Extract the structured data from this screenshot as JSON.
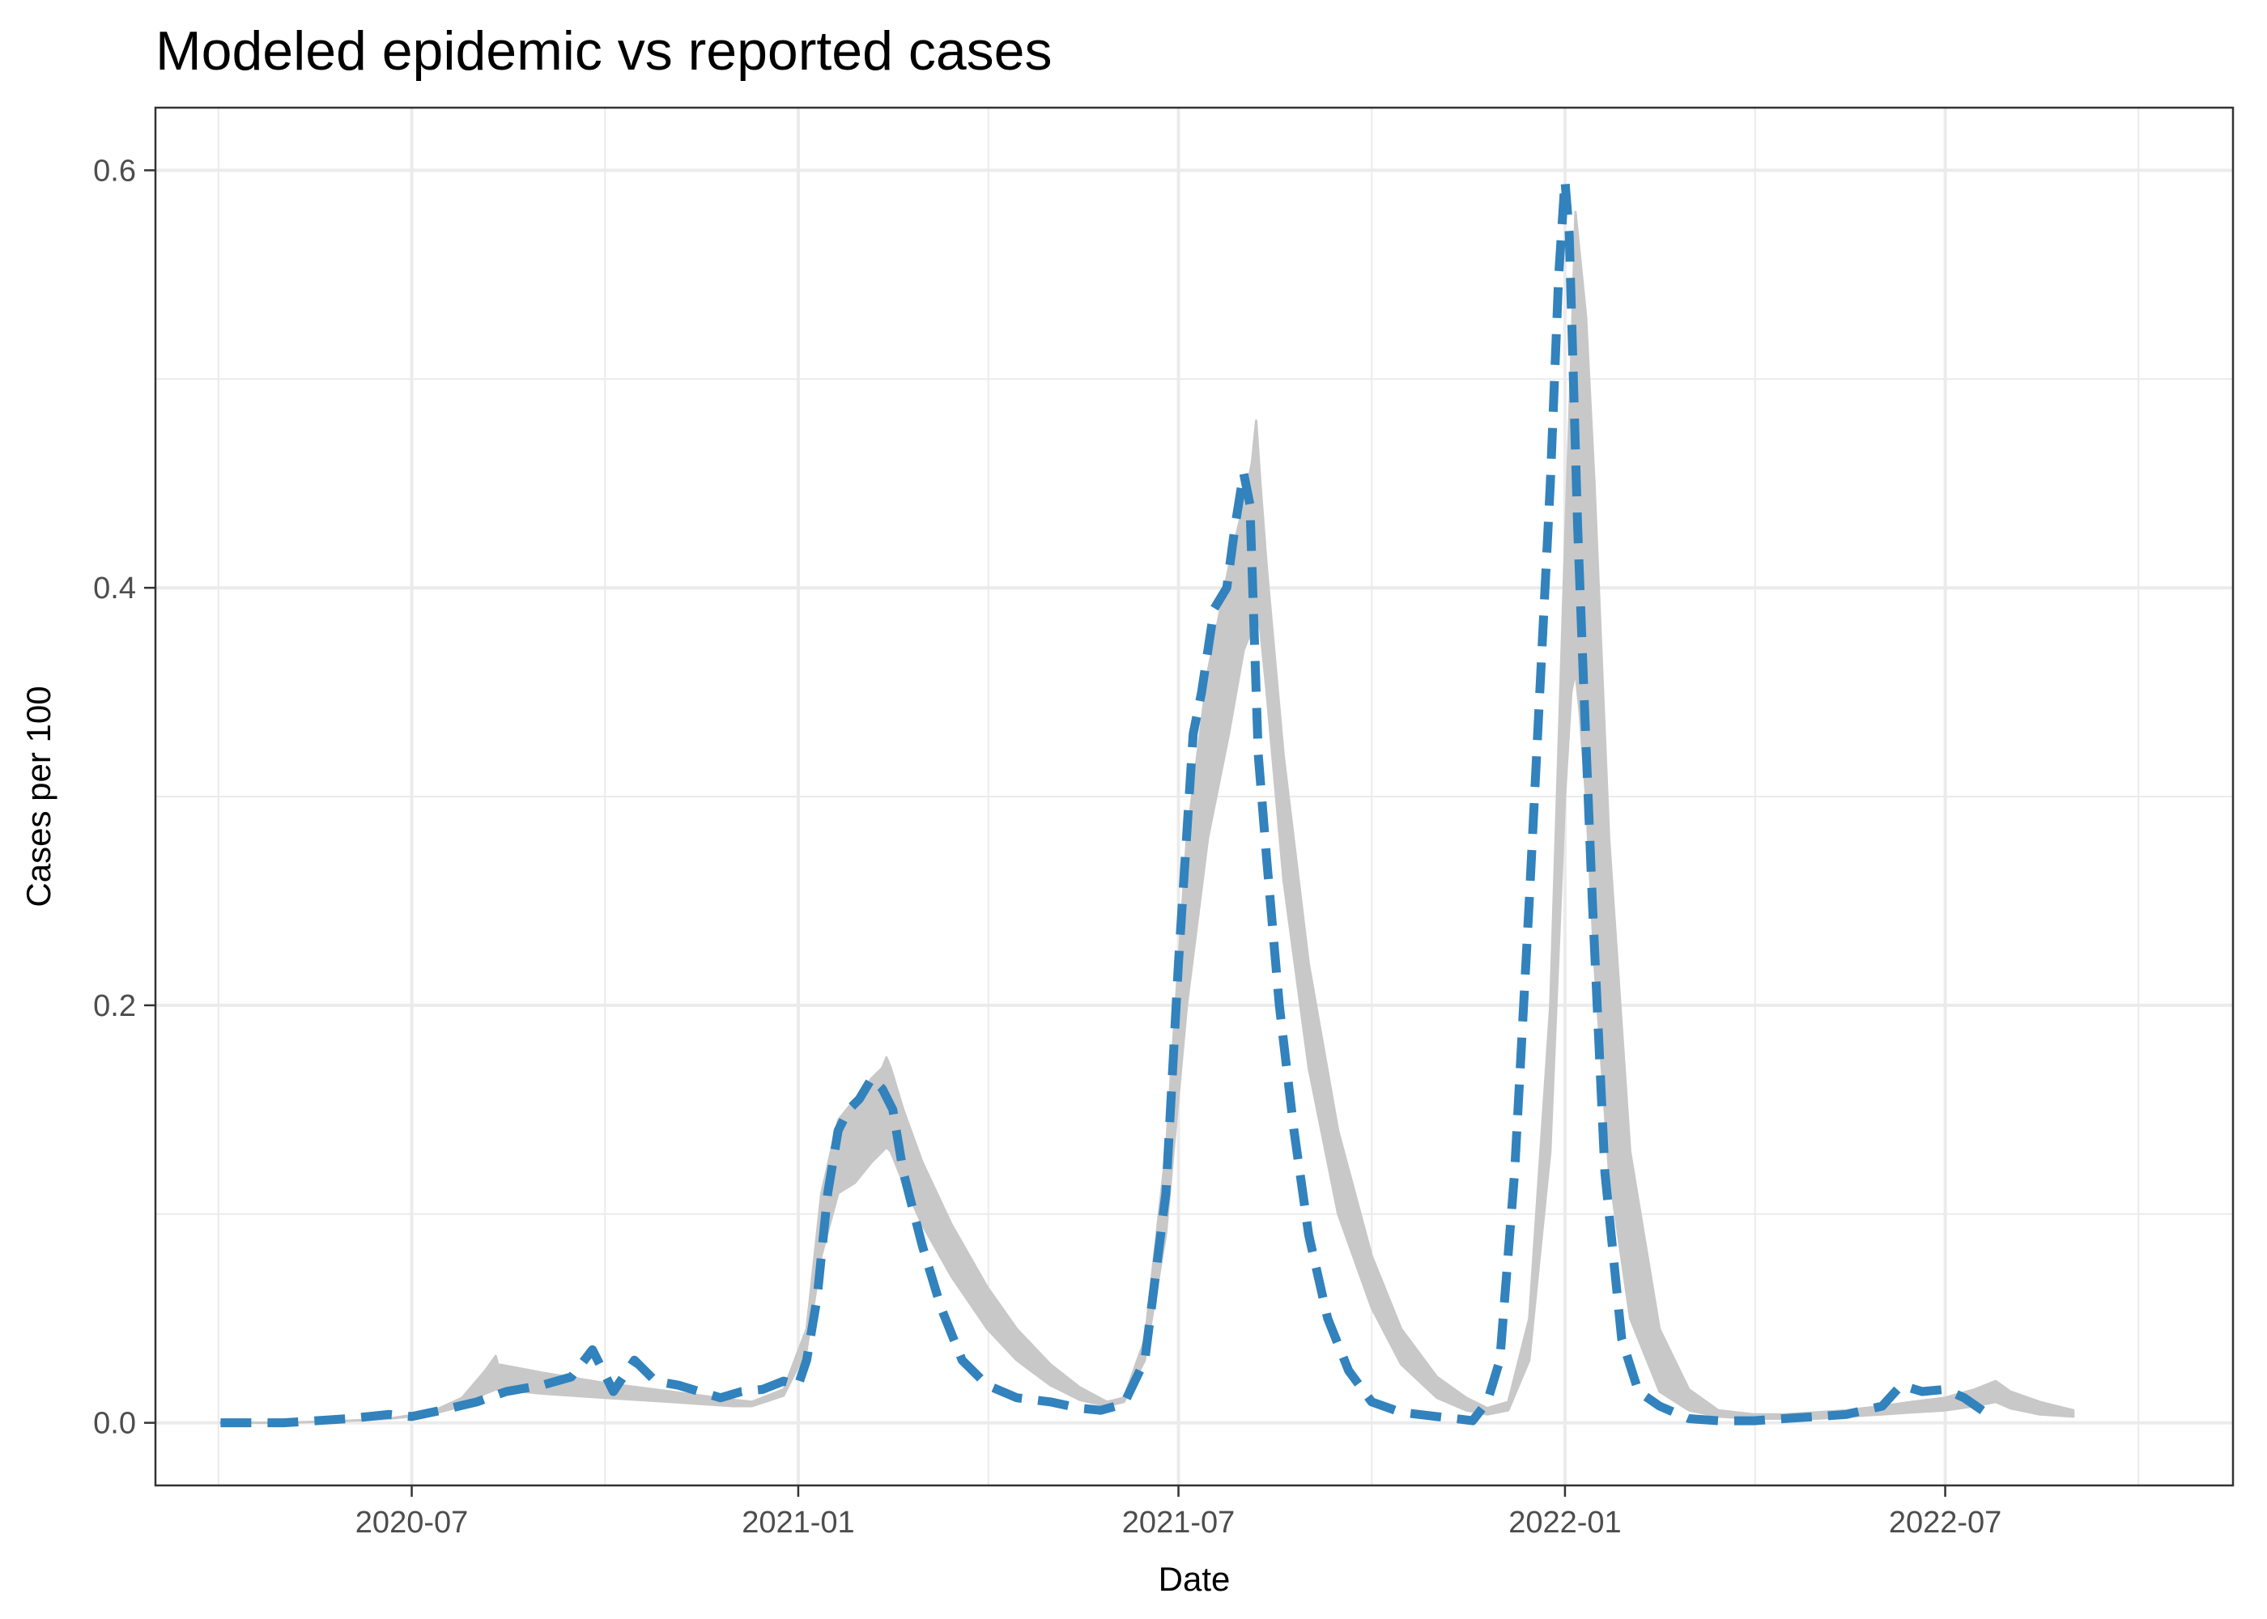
{
  "chart_data": {
    "type": "line",
    "title": "Modeled epidemic vs reported cases",
    "xlabel": "Date",
    "ylabel": "Cases per 100",
    "xlim": [
      "2020-03-01",
      "2022-11-15"
    ],
    "ylim": [
      -0.03,
      0.63
    ],
    "x_ticks": [
      "2020-07-01",
      "2021-01-01",
      "2021-07-01",
      "2022-01-01",
      "2022-07-01"
    ],
    "x_tick_labels": [
      "2020-07",
      "2021-01",
      "2021-07",
      "2022-01",
      "2022-07"
    ],
    "y_ticks": [
      0.0,
      0.2,
      0.4,
      0.6
    ],
    "y_tick_labels": [
      "0.0",
      "0.2",
      "0.4",
      "0.6"
    ],
    "grid": true,
    "colors": {
      "model_band": "#c8c8c8",
      "reported": "#3182bd",
      "grid": "#ebebeb",
      "frame": "#333333"
    },
    "series": [
      {
        "style": "band",
        "x": [
          "2020-04-01",
          "2020-05-01",
          "2020-06-01",
          "2020-06-20",
          "2020-07-10",
          "2020-07-25",
          "2020-08-05",
          "2020-08-10",
          "2020-08-11",
          "2020-09-01",
          "2020-10-01",
          "2020-11-01",
          "2020-12-01",
          "2020-12-10",
          "2020-12-25",
          "2021-01-05",
          "2021-01-12",
          "2021-01-20",
          "2021-01-28",
          "2021-02-05",
          "2021-02-10",
          "2021-02-12",
          "2021-02-14",
          "2021-02-20",
          "2021-03-01",
          "2021-03-15",
          "2021-04-01",
          "2021-04-15",
          "2021-05-01",
          "2021-05-15",
          "2021-05-28",
          "2021-06-05",
          "2021-06-15",
          "2021-06-25",
          "2021-07-05",
          "2021-07-15",
          "2021-07-25",
          "2021-08-01",
          "2021-08-05",
          "2021-08-07",
          "2021-08-09",
          "2021-08-12",
          "2021-08-20",
          "2021-09-01",
          "2021-09-15",
          "2021-10-01",
          "2021-10-15",
          "2021-11-01",
          "2021-11-15",
          "2021-11-25",
          "2021-12-05",
          "2021-12-15",
          "2021-12-25",
          "2022-01-01",
          "2022-01-04",
          "2022-01-06",
          "2022-01-08",
          "2022-01-11",
          "2022-01-15",
          "2022-01-22",
          "2022-02-01",
          "2022-02-15",
          "2022-03-01",
          "2022-03-15",
          "2022-04-01",
          "2022-04-15",
          "2022-05-01",
          "2022-05-15",
          "2022-06-01",
          "2022-06-15",
          "2022-07-01",
          "2022-07-15",
          "2022-07-25",
          "2022-08-01",
          "2022-08-15",
          "2022-08-31"
        ],
        "lower": [
          0.0,
          0.0,
          0.001,
          0.002,
          0.004,
          0.008,
          0.014,
          0.016,
          0.016,
          0.014,
          0.012,
          0.01,
          0.008,
          0.008,
          0.013,
          0.035,
          0.08,
          0.11,
          0.115,
          0.125,
          0.13,
          0.132,
          0.13,
          0.115,
          0.095,
          0.07,
          0.045,
          0.03,
          0.018,
          0.011,
          0.008,
          0.01,
          0.03,
          0.09,
          0.2,
          0.28,
          0.33,
          0.37,
          0.38,
          0.39,
          0.38,
          0.35,
          0.26,
          0.17,
          0.1,
          0.055,
          0.028,
          0.012,
          0.006,
          0.004,
          0.006,
          0.03,
          0.13,
          0.3,
          0.35,
          0.36,
          0.34,
          0.3,
          0.22,
          0.12,
          0.05,
          0.015,
          0.006,
          0.003,
          0.002,
          0.002,
          0.002,
          0.003,
          0.004,
          0.005,
          0.006,
          0.008,
          0.01,
          0.007,
          0.004,
          0.003
        ],
        "upper": [
          0.0,
          0.0,
          0.001,
          0.002,
          0.005,
          0.012,
          0.025,
          0.032,
          0.028,
          0.024,
          0.019,
          0.015,
          0.011,
          0.01,
          0.016,
          0.045,
          0.11,
          0.145,
          0.155,
          0.165,
          0.17,
          0.175,
          0.17,
          0.15,
          0.125,
          0.095,
          0.065,
          0.045,
          0.028,
          0.017,
          0.01,
          0.012,
          0.04,
          0.13,
          0.28,
          0.36,
          0.41,
          0.44,
          0.46,
          0.48,
          0.45,
          0.41,
          0.32,
          0.22,
          0.14,
          0.08,
          0.045,
          0.022,
          0.012,
          0.007,
          0.01,
          0.05,
          0.2,
          0.42,
          0.51,
          0.58,
          0.56,
          0.53,
          0.45,
          0.28,
          0.13,
          0.045,
          0.016,
          0.006,
          0.004,
          0.004,
          0.005,
          0.006,
          0.008,
          0.01,
          0.012,
          0.016,
          0.02,
          0.015,
          0.01,
          0.006
        ]
      },
      {
        "style": "dashed",
        "x": [
          "2020-04-01",
          "2020-05-01",
          "2020-06-01",
          "2020-06-20",
          "2020-07-01",
          "2020-07-15",
          "2020-08-01",
          "2020-08-15",
          "2020-09-01",
          "2020-09-15",
          "2020-09-25",
          "2020-10-05",
          "2020-10-15",
          "2020-10-25",
          "2020-11-05",
          "2020-11-15",
          "2020-11-25",
          "2020-12-05",
          "2020-12-15",
          "2020-12-25",
          "2021-01-01",
          "2021-01-05",
          "2021-01-10",
          "2021-01-15",
          "2021-01-20",
          "2021-01-25",
          "2021-01-30",
          "2021-02-05",
          "2021-02-10",
          "2021-02-15",
          "2021-02-20",
          "2021-03-01",
          "2021-03-10",
          "2021-03-20",
          "2021-04-01",
          "2021-04-15",
          "2021-05-01",
          "2021-05-15",
          "2021-05-25",
          "2021-06-05",
          "2021-06-15",
          "2021-06-25",
          "2021-07-01",
          "2021-07-08",
          "2021-07-12",
          "2021-07-18",
          "2021-07-24",
          "2021-07-28",
          "2021-08-01",
          "2021-08-04",
          "2021-08-06",
          "2021-08-08",
          "2021-08-12",
          "2021-08-18",
          "2021-08-25",
          "2021-09-01",
          "2021-09-10",
          "2021-09-20",
          "2021-10-01",
          "2021-10-15",
          "2021-11-01",
          "2021-11-10",
          "2021-11-18",
          "2021-11-25",
          "2021-12-01",
          "2021-12-08",
          "2021-12-15",
          "2021-12-20",
          "2021-12-25",
          "2021-12-29",
          "2022-01-01",
          "2022-01-03",
          "2022-01-05",
          "2022-01-07",
          "2022-01-10",
          "2022-01-14",
          "2022-01-20",
          "2022-01-28",
          "2022-02-05",
          "2022-02-15",
          "2022-03-01",
          "2022-03-15",
          "2022-04-01",
          "2022-04-15",
          "2022-05-01",
          "2022-05-15",
          "2022-06-01",
          "2022-06-10",
          "2022-06-20",
          "2022-07-01",
          "2022-07-10",
          "2022-07-20"
        ],
        "y": [
          0.0,
          0.0,
          0.002,
          0.004,
          0.003,
          0.006,
          0.01,
          0.015,
          0.018,
          0.022,
          0.035,
          0.015,
          0.03,
          0.02,
          0.018,
          0.015,
          0.012,
          0.015,
          0.016,
          0.02,
          0.018,
          0.03,
          0.06,
          0.11,
          0.14,
          0.15,
          0.155,
          0.165,
          0.16,
          0.15,
          0.12,
          0.085,
          0.055,
          0.03,
          0.018,
          0.012,
          0.01,
          0.007,
          0.006,
          0.009,
          0.03,
          0.11,
          0.22,
          0.33,
          0.35,
          0.39,
          0.4,
          0.43,
          0.455,
          0.44,
          0.38,
          0.32,
          0.27,
          0.2,
          0.14,
          0.09,
          0.05,
          0.025,
          0.01,
          0.005,
          0.003,
          0.002,
          0.001,
          0.01,
          0.03,
          0.12,
          0.25,
          0.35,
          0.45,
          0.55,
          0.595,
          0.57,
          0.5,
          0.43,
          0.35,
          0.25,
          0.12,
          0.04,
          0.015,
          0.008,
          0.002,
          0.001,
          0.001,
          0.002,
          0.003,
          0.004,
          0.008,
          0.018,
          0.015,
          0.016,
          0.012,
          0.005
        ]
      }
    ]
  }
}
